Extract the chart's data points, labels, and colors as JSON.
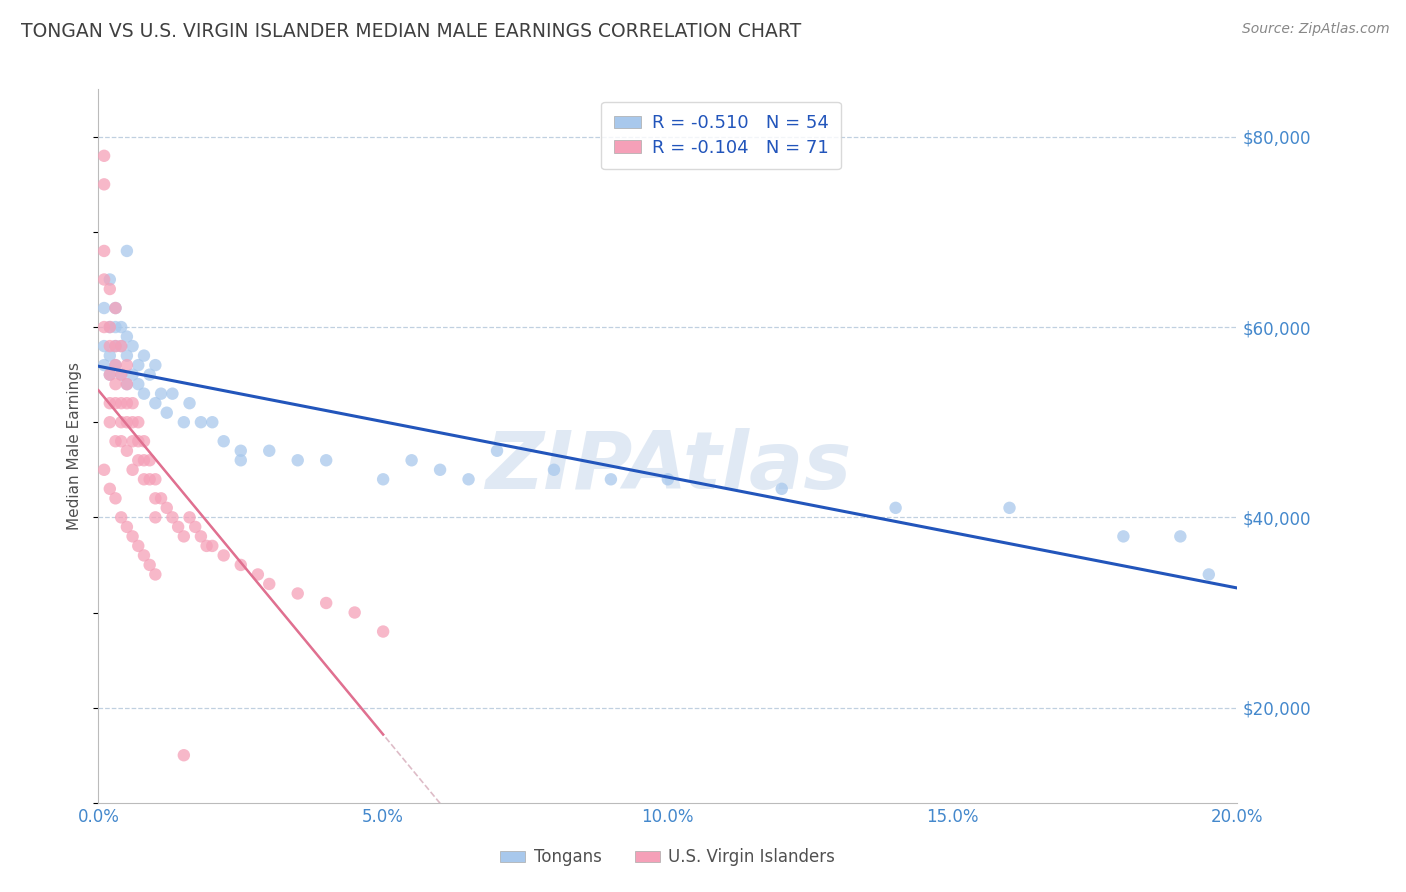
{
  "title": "TONGAN VS U.S. VIRGIN ISLANDER MEDIAN MALE EARNINGS CORRELATION CHART",
  "source_text": "Source: ZipAtlas.com",
  "ylabel": "Median Male Earnings",
  "xlim": [
    0.0,
    0.2
  ],
  "ylim": [
    10000,
    85000
  ],
  "xtick_labels": [
    "0.0%",
    "5.0%",
    "10.0%",
    "15.0%",
    "20.0%"
  ],
  "xtick_vals": [
    0.0,
    0.05,
    0.1,
    0.15,
    0.2
  ],
  "ytick_vals": [
    20000,
    40000,
    60000,
    80000
  ],
  "ytick_labels": [
    "$20,000",
    "$40,000",
    "$60,000",
    "$80,000"
  ],
  "series1_name": "Tongans",
  "series1_color": "#A8C8EC",
  "series1_R": "-0.510",
  "series1_N": "54",
  "series1_line_color": "#2255BB",
  "series2_name": "U.S. Virgin Islanders",
  "series2_color": "#F5A0B8",
  "series2_R": "-0.104",
  "series2_N": "71",
  "series2_line_color": "#E07090",
  "series2_dash_color": "#D0A0B0",
  "background_color": "#ffffff",
  "grid_color": "#C0D0E0",
  "watermark_text": "ZIPAtlas",
  "watermark_color": "#C8D8EC",
  "title_color": "#404040",
  "axis_label_color": "#505050",
  "tick_label_color": "#4488CC",
  "legend_color": "#2255BB",
  "series1_x": [
    0.001,
    0.001,
    0.001,
    0.002,
    0.002,
    0.002,
    0.002,
    0.003,
    0.003,
    0.003,
    0.003,
    0.004,
    0.004,
    0.004,
    0.005,
    0.005,
    0.005,
    0.006,
    0.006,
    0.007,
    0.007,
    0.008,
    0.008,
    0.009,
    0.01,
    0.01,
    0.011,
    0.012,
    0.013,
    0.015,
    0.016,
    0.018,
    0.02,
    0.022,
    0.025,
    0.03,
    0.035,
    0.04,
    0.05,
    0.055,
    0.06,
    0.065,
    0.07,
    0.08,
    0.09,
    0.1,
    0.12,
    0.14,
    0.16,
    0.18,
    0.19,
    0.195,
    0.005,
    0.025
  ],
  "series1_y": [
    56000,
    58000,
    62000,
    60000,
    55000,
    57000,
    65000,
    58000,
    60000,
    56000,
    62000,
    55000,
    58000,
    60000,
    54000,
    57000,
    59000,
    55000,
    58000,
    54000,
    56000,
    53000,
    57000,
    55000,
    52000,
    56000,
    53000,
    51000,
    53000,
    50000,
    52000,
    50000,
    50000,
    48000,
    47000,
    47000,
    46000,
    46000,
    44000,
    46000,
    45000,
    44000,
    47000,
    45000,
    44000,
    44000,
    43000,
    41000,
    41000,
    38000,
    38000,
    34000,
    68000,
    46000
  ],
  "series2_x": [
    0.001,
    0.001,
    0.001,
    0.001,
    0.001,
    0.002,
    0.002,
    0.002,
    0.002,
    0.002,
    0.002,
    0.003,
    0.003,
    0.003,
    0.003,
    0.003,
    0.003,
    0.004,
    0.004,
    0.004,
    0.004,
    0.004,
    0.005,
    0.005,
    0.005,
    0.005,
    0.005,
    0.006,
    0.006,
    0.006,
    0.006,
    0.007,
    0.007,
    0.007,
    0.008,
    0.008,
    0.008,
    0.009,
    0.009,
    0.01,
    0.01,
    0.01,
    0.011,
    0.012,
    0.013,
    0.014,
    0.015,
    0.016,
    0.017,
    0.018,
    0.019,
    0.02,
    0.022,
    0.025,
    0.028,
    0.03,
    0.035,
    0.04,
    0.045,
    0.05,
    0.001,
    0.002,
    0.003,
    0.004,
    0.005,
    0.006,
    0.007,
    0.008,
    0.009,
    0.01,
    0.015
  ],
  "series2_y": [
    78000,
    75000,
    68000,
    65000,
    60000,
    64000,
    60000,
    58000,
    55000,
    52000,
    50000,
    62000,
    58000,
    56000,
    54000,
    52000,
    48000,
    58000,
    55000,
    52000,
    50000,
    48000,
    56000,
    54000,
    52000,
    50000,
    47000,
    52000,
    50000,
    48000,
    45000,
    50000,
    48000,
    46000,
    48000,
    46000,
    44000,
    46000,
    44000,
    44000,
    42000,
    40000,
    42000,
    41000,
    40000,
    39000,
    38000,
    40000,
    39000,
    38000,
    37000,
    37000,
    36000,
    35000,
    34000,
    33000,
    32000,
    31000,
    30000,
    28000,
    45000,
    43000,
    42000,
    40000,
    39000,
    38000,
    37000,
    36000,
    35000,
    34000,
    15000
  ]
}
